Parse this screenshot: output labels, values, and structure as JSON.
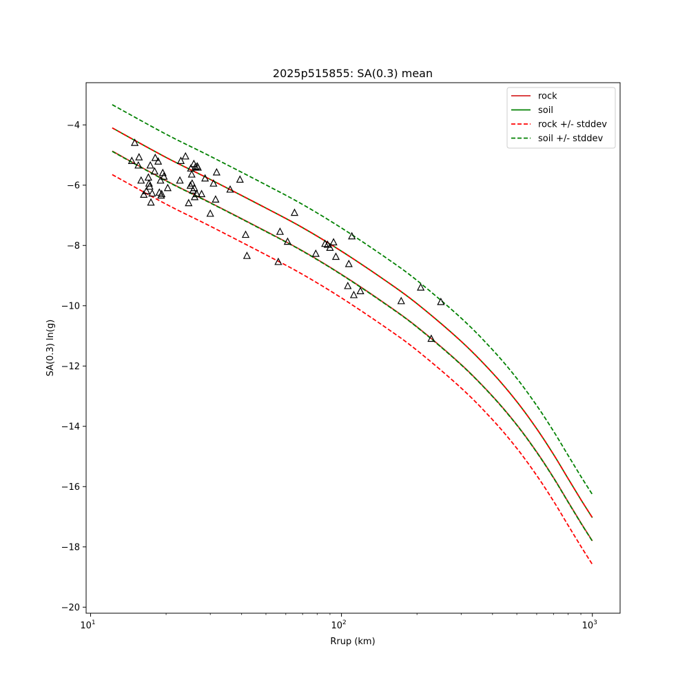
{
  "chart_data": {
    "type": "line",
    "title": "2025p515855: SA(0.3) mean",
    "xlabel": "Rrup (km)",
    "ylabel": "SA(0.3) ln(g)",
    "xscale": "log",
    "xlim": [
      9.6,
      1290
    ],
    "ylim": [
      -20.2,
      -2.6
    ],
    "grid": false,
    "legend_position": "top-right",
    "x_ticks": [
      {
        "value": 10,
        "base": "10",
        "exp": "1"
      },
      {
        "value": 100,
        "base": "10",
        "exp": "2"
      },
      {
        "value": 1000,
        "base": "10",
        "exp": "3"
      }
    ],
    "y_ticks": [
      {
        "value": -4,
        "label": "−4"
      },
      {
        "value": -6,
        "label": "−6"
      },
      {
        "value": -8,
        "label": "−8"
      },
      {
        "value": -10,
        "label": "−10"
      },
      {
        "value": -12,
        "label": "−12"
      },
      {
        "value": -14,
        "label": "−14"
      },
      {
        "value": -16,
        "label": "−16"
      },
      {
        "value": -18,
        "label": "−18"
      },
      {
        "value": -20,
        "label": "−20"
      }
    ],
    "x": [
      12.2,
      20,
      30,
      50,
      70,
      100,
      150,
      200,
      300,
      400,
      500,
      600,
      700,
      800,
      900,
      1000
    ],
    "series": [
      {
        "name": "rock",
        "color": "#d62728",
        "style": "solid",
        "values": [
          -4.87,
          -5.85,
          -6.58,
          -7.53,
          -8.18,
          -8.96,
          -9.94,
          -10.7,
          -11.95,
          -13.0,
          -13.95,
          -14.85,
          -15.7,
          -16.5,
          -17.2,
          -17.8
        ]
      },
      {
        "name": "soil",
        "color": "#008000",
        "style": "solid",
        "values": [
          -4.1,
          -5.08,
          -5.81,
          -6.76,
          -7.41,
          -8.19,
          -9.17,
          -9.93,
          -11.18,
          -12.23,
          -13.18,
          -14.08,
          -14.93,
          -15.73,
          -16.43,
          -17.03
        ]
      },
      {
        "name": "rock +/- stddev",
        "color": "#ff0000",
        "style": "dashed",
        "values": [
          -5.65,
          -6.63,
          -7.36,
          -8.31,
          -8.96,
          -9.74,
          -10.72,
          -11.48,
          -12.73,
          -13.78,
          -14.73,
          -15.63,
          -16.48,
          -17.28,
          -17.98,
          -18.58
        ]
      },
      {
        "name": "",
        "color": "#ff0000",
        "style": "dashed",
        "values": [
          -4.1,
          -5.08,
          -5.81,
          -6.76,
          -7.41,
          -8.19,
          -9.17,
          -9.93,
          -11.18,
          -12.23,
          -13.18,
          -14.08,
          -14.93,
          -15.73,
          -16.43,
          -17.03
        ]
      },
      {
        "name": "soil +/- stddev",
        "color": "#008000",
        "style": "dashed",
        "values": [
          -4.88,
          -5.86,
          -6.59,
          -7.54,
          -8.19,
          -8.97,
          -9.95,
          -10.71,
          -11.96,
          -13.01,
          -13.96,
          -14.86,
          -15.71,
          -16.51,
          -17.21,
          -17.81
        ]
      },
      {
        "name": "",
        "color": "#008000",
        "style": "dashed",
        "values": [
          -3.33,
          -4.31,
          -5.04,
          -5.99,
          -6.64,
          -7.42,
          -8.4,
          -9.16,
          -10.41,
          -11.46,
          -12.41,
          -13.31,
          -14.16,
          -14.96,
          -15.66,
          -16.26
        ]
      }
    ],
    "observations": {
      "marker": "open-triangle",
      "color": "#000000",
      "points": [
        [
          14.6,
          -5.2
        ],
        [
          15.0,
          -4.6
        ],
        [
          15.5,
          -5.35
        ],
        [
          15.6,
          -5.08
        ],
        [
          15.9,
          -5.85
        ],
        [
          16.3,
          -6.32
        ],
        [
          16.7,
          -6.2
        ],
        [
          17.0,
          -5.75
        ],
        [
          17.1,
          -5.95
        ],
        [
          17.2,
          -6.05
        ],
        [
          17.3,
          -5.35
        ],
        [
          17.4,
          -6.58
        ],
        [
          17.6,
          -6.28
        ],
        [
          18.0,
          -5.55
        ],
        [
          18.1,
          -5.1
        ],
        [
          18.6,
          -5.22
        ],
        [
          18.8,
          -6.25
        ],
        [
          19.0,
          -5.85
        ],
        [
          19.1,
          -6.35
        ],
        [
          19.2,
          -6.3
        ],
        [
          19.4,
          -5.6
        ],
        [
          19.6,
          -5.72
        ],
        [
          20.3,
          -6.1
        ],
        [
          22.7,
          -5.85
        ],
        [
          22.9,
          -5.2
        ],
        [
          23.9,
          -5.05
        ],
        [
          24.6,
          -6.6
        ],
        [
          25.0,
          -6.02
        ],
        [
          25.1,
          -5.45
        ],
        [
          25.3,
          -5.65
        ],
        [
          25.4,
          -5.95
        ],
        [
          25.6,
          -6.18
        ],
        [
          25.8,
          -5.3
        ],
        [
          25.9,
          -6.1
        ],
        [
          26.0,
          -6.4
        ],
        [
          26.2,
          -5.4
        ],
        [
          26.5,
          -6.3
        ],
        [
          26.6,
          -5.38
        ],
        [
          26.8,
          -5.42
        ],
        [
          27.7,
          -6.3
        ],
        [
          28.6,
          -5.78
        ],
        [
          30.0,
          -6.95
        ],
        [
          30.9,
          -5.95
        ],
        [
          31.5,
          -6.48
        ],
        [
          31.8,
          -5.58
        ],
        [
          36.0,
          -6.15
        ],
        [
          39.4,
          -5.82
        ],
        [
          41.5,
          -7.65
        ],
        [
          42.0,
          -8.35
        ],
        [
          56.0,
          -8.55
        ],
        [
          56.9,
          -7.55
        ],
        [
          61.0,
          -7.88
        ],
        [
          65.0,
          -6.92
        ],
        [
          79.0,
          -8.28
        ],
        [
          86.0,
          -7.95
        ],
        [
          88.0,
          -7.98
        ],
        [
          90.0,
          -8.08
        ],
        [
          93.0,
          -7.9
        ],
        [
          95.0,
          -8.38
        ],
        [
          106.0,
          -9.35
        ],
        [
          107.0,
          -8.62
        ],
        [
          110.0,
          -7.7
        ],
        [
          112.0,
          -9.65
        ],
        [
          119.0,
          -9.52
        ],
        [
          173.0,
          -9.85
        ],
        [
          207.0,
          -9.4
        ],
        [
          228.0,
          -11.1
        ],
        [
          249.0,
          -9.88
        ]
      ]
    }
  }
}
